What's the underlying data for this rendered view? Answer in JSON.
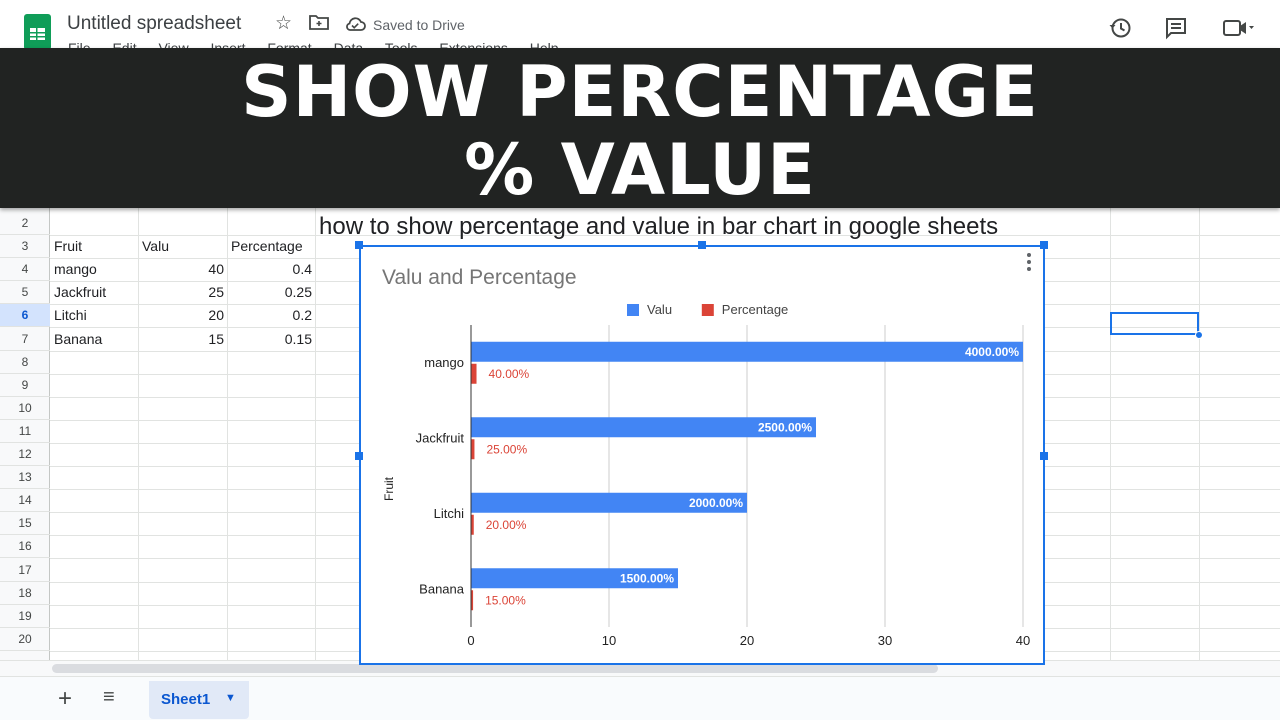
{
  "app": {
    "title": "Untitled spreadsheet",
    "saved_status": "Saved to Drive",
    "icons": {
      "logo": "google-sheets-logo",
      "star": "star-icon",
      "move": "move-to-folder-icon",
      "cloud": "cloud-saved-icon",
      "history": "version-history-icon",
      "comments": "comment-icon",
      "meet": "video-call-icon"
    }
  },
  "menu": [
    "File",
    "Edit",
    "View",
    "Insert",
    "Format",
    "Data",
    "Tools",
    "Extensions",
    "Help"
  ],
  "banner": {
    "line1": "SHOW PERCENTAGE",
    "line2": "% VALUE"
  },
  "sheet": {
    "heading": "how to show percentage and value in bar chart in google sheets",
    "active_row": "6",
    "row_numbers": [
      "2",
      "3",
      "4",
      "5",
      "6",
      "7",
      "8",
      "9",
      "10",
      "11",
      "12",
      "13",
      "14",
      "15",
      "16",
      "17",
      "18",
      "19",
      "20"
    ],
    "headers": [
      "Fruit",
      "Valu",
      "Percentage"
    ],
    "rows": [
      [
        "mango",
        "40",
        "0.4"
      ],
      [
        "Jackfruit",
        "25",
        "0.25"
      ],
      [
        "Litchi",
        "20",
        "0.2"
      ],
      [
        "Banana",
        "15",
        "0.15"
      ]
    ]
  },
  "chart_data": {
    "type": "bar",
    "orientation": "horizontal",
    "title": "Valu and Percentage",
    "xlabel": "",
    "ylabel": "Fruit",
    "categories": [
      "mango",
      "Jackfruit",
      "Litchi",
      "Banana"
    ],
    "series": [
      {
        "name": "Valu",
        "color": "#4285f4",
        "values": [
          40,
          25,
          20,
          15
        ],
        "data_labels": [
          "4000.00%",
          "2500.00%",
          "2000.00%",
          "1500.00%"
        ]
      },
      {
        "name": "Percentage",
        "color": "#db4437",
        "values": [
          0.4,
          0.25,
          0.2,
          0.15
        ],
        "data_labels": [
          "40.00%",
          "25.00%",
          "20.00%",
          "15.00%"
        ]
      }
    ],
    "xlim": [
      0,
      40
    ],
    "xticks": [
      0,
      10,
      20,
      30,
      40
    ],
    "grid": true,
    "legend": "top"
  },
  "bottom": {
    "sheet_tab": "Sheet1",
    "icons": {
      "add": "add-sheet-icon",
      "list": "all-sheets-icon",
      "caret": "sheet-menu-caret-icon"
    }
  }
}
